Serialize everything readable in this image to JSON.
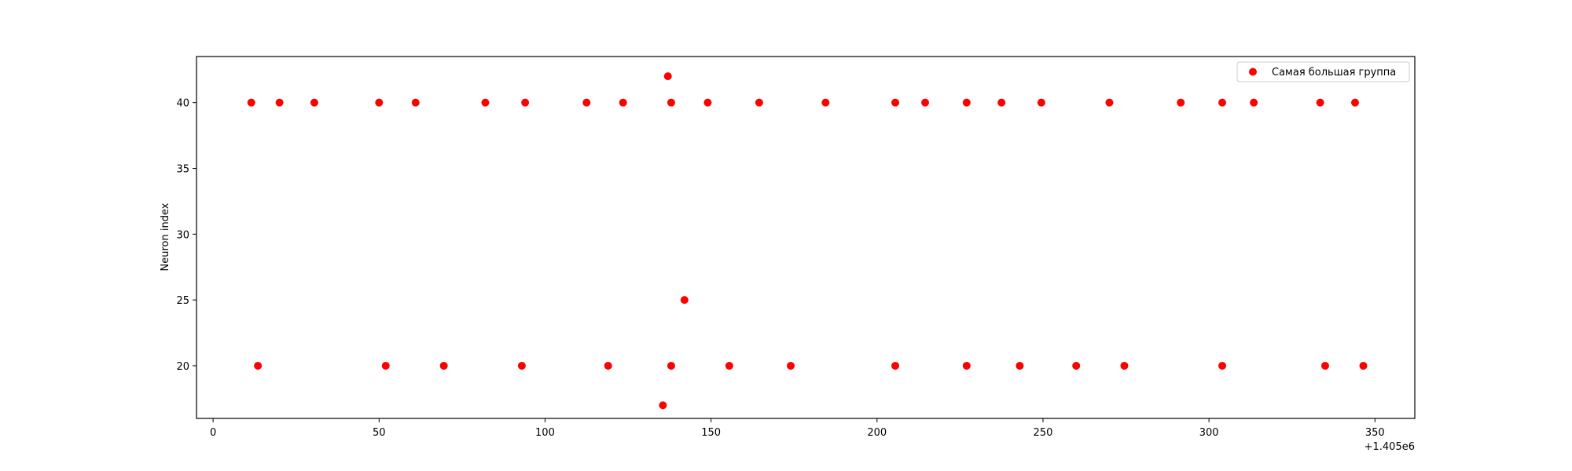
{
  "chart_data": {
    "type": "scatter",
    "xlabel": "",
    "ylabel": "Neuron index",
    "x_offset_label": "+1.405e6",
    "xlim": [
      -5,
      362
    ],
    "ylim": [
      16,
      43.5
    ],
    "x_ticks": [
      0,
      50,
      100,
      150,
      200,
      250,
      300,
      350
    ],
    "y_ticks": [
      20,
      25,
      30,
      35,
      40
    ],
    "grid": false,
    "legend_position": "top-right",
    "marker_color": "#ff0000",
    "series": [
      {
        "name": "Самая большая группа",
        "points": [
          {
            "x": 11.5,
            "y": 40
          },
          {
            "x": 20,
            "y": 40
          },
          {
            "x": 30.5,
            "y": 40
          },
          {
            "x": 50,
            "y": 40
          },
          {
            "x": 61,
            "y": 40
          },
          {
            "x": 82,
            "y": 40
          },
          {
            "x": 94,
            "y": 40
          },
          {
            "x": 112.5,
            "y": 40
          },
          {
            "x": 123.5,
            "y": 40
          },
          {
            "x": 138,
            "y": 40
          },
          {
            "x": 149,
            "y": 40
          },
          {
            "x": 164.5,
            "y": 40
          },
          {
            "x": 184.5,
            "y": 40
          },
          {
            "x": 205.5,
            "y": 40
          },
          {
            "x": 214.5,
            "y": 40
          },
          {
            "x": 227,
            "y": 40
          },
          {
            "x": 237.5,
            "y": 40
          },
          {
            "x": 249.5,
            "y": 40
          },
          {
            "x": 270,
            "y": 40
          },
          {
            "x": 291.5,
            "y": 40
          },
          {
            "x": 304,
            "y": 40
          },
          {
            "x": 313.5,
            "y": 40
          },
          {
            "x": 333.5,
            "y": 40
          },
          {
            "x": 344,
            "y": 40
          },
          {
            "x": 137,
            "y": 42
          },
          {
            "x": 142,
            "y": 25
          },
          {
            "x": 13.5,
            "y": 20
          },
          {
            "x": 52,
            "y": 20
          },
          {
            "x": 69.5,
            "y": 20
          },
          {
            "x": 93,
            "y": 20
          },
          {
            "x": 119,
            "y": 20
          },
          {
            "x": 138,
            "y": 20
          },
          {
            "x": 155.5,
            "y": 20
          },
          {
            "x": 174,
            "y": 20
          },
          {
            "x": 205.5,
            "y": 20
          },
          {
            "x": 227,
            "y": 20
          },
          {
            "x": 243,
            "y": 20
          },
          {
            "x": 260,
            "y": 20
          },
          {
            "x": 274.5,
            "y": 20
          },
          {
            "x": 304,
            "y": 20
          },
          {
            "x": 335,
            "y": 20
          },
          {
            "x": 346.5,
            "y": 20
          },
          {
            "x": 135.5,
            "y": 17
          }
        ]
      }
    ]
  }
}
